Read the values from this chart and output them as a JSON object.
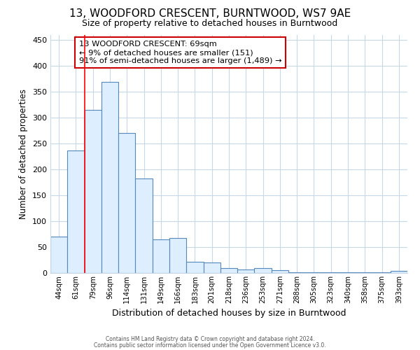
{
  "title": "13, WOODFORD CRESCENT, BURNTWOOD, WS7 9AE",
  "subtitle": "Size of property relative to detached houses in Burntwood",
  "xlabel": "Distribution of detached houses by size in Burntwood",
  "ylabel": "Number of detached properties",
  "categories": [
    "44sqm",
    "61sqm",
    "79sqm",
    "96sqm",
    "114sqm",
    "131sqm",
    "149sqm",
    "166sqm",
    "183sqm",
    "201sqm",
    "218sqm",
    "236sqm",
    "253sqm",
    "271sqm",
    "288sqm",
    "305sqm",
    "323sqm",
    "340sqm",
    "358sqm",
    "375sqm",
    "393sqm"
  ],
  "values": [
    70,
    237,
    315,
    370,
    270,
    183,
    65,
    68,
    22,
    20,
    10,
    7,
    10,
    5,
    2,
    2,
    2,
    1,
    1,
    1,
    4
  ],
  "bar_face_color": "#ddeeff",
  "bar_edge_color": "#5588bb",
  "ylim": [
    0,
    460
  ],
  "yticks": [
    0,
    50,
    100,
    150,
    200,
    250,
    300,
    350,
    400,
    450
  ],
  "property_label": "13 WOODFORD CRESCENT: 69sqm",
  "annotation_line1": "← 9% of detached houses are smaller (151)",
  "annotation_line2": "91% of semi-detached houses are larger (1,489) →",
  "red_line_index": 1,
  "annotation_box_color": "#cc0000",
  "grid_color": "#c8d8e8",
  "background_color": "#ffffff",
  "footer1": "Contains HM Land Registry data © Crown copyright and database right 2024.",
  "footer2": "Contains public sector information licensed under the Open Government Licence v3.0."
}
